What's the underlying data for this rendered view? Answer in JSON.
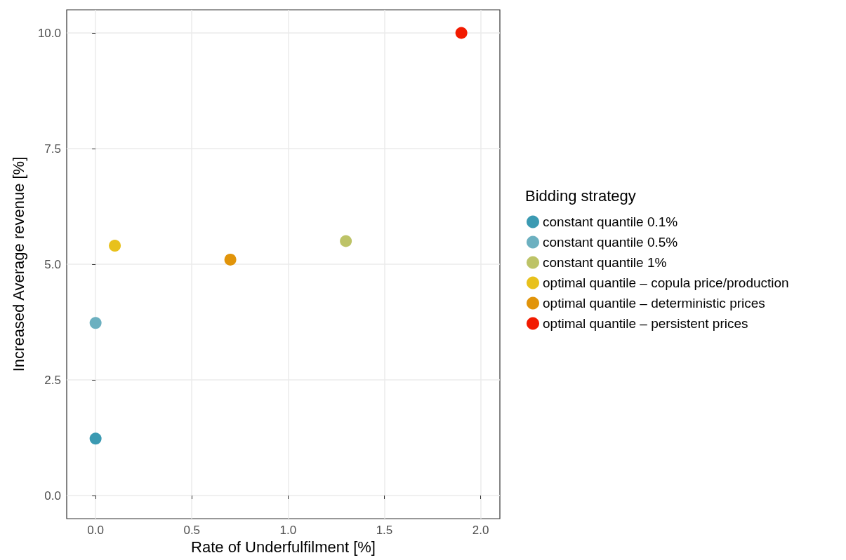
{
  "chart_data": {
    "type": "scatter",
    "xlabel": "Rate of Underfulfilment [%]",
    "ylabel": "Increased Average revenue [%]",
    "legend_title": "Bidding strategy",
    "series": [
      {
        "name": "constant quantile 0.1%",
        "color": "#3b9ab2",
        "x": [
          0
        ],
        "values": [
          1.23
        ]
      },
      {
        "name": "constant quantile 0.5%",
        "color": "#6cb0c0",
        "x": [
          0
        ],
        "values": [
          3.73
        ]
      },
      {
        "name": "constant quantile 1%",
        "color": "#bdc367",
        "x": [
          1.3
        ],
        "values": [
          5.5
        ]
      },
      {
        "name": "optimal quantile – copula price/production",
        "color": "#e8c11c",
        "x": [
          0.1
        ],
        "values": [
          5.4
        ]
      },
      {
        "name": "optimal quantile – deterministic prices",
        "color": "#e1940a",
        "x": [
          0.7
        ],
        "values": [
          5.1
        ]
      },
      {
        "name": "optimal quantile – persistent prices",
        "color": "#f21a00",
        "x": [
          1.9
        ],
        "values": [
          10
        ]
      }
    ],
    "xlim": [
      -0.15,
      2.1
    ],
    "xticks": [
      {
        "value": 0,
        "label": "0.0"
      },
      {
        "value": 0.5,
        "label": "0.5"
      },
      {
        "value": 1,
        "label": "1.0"
      },
      {
        "value": 1.5,
        "label": "1.5"
      },
      {
        "value": 2,
        "label": "2.0"
      }
    ],
    "ylim": [
      -0.5,
      10.5
    ],
    "yticks": [
      {
        "value": 0,
        "label": "0.0"
      },
      {
        "value": 2.5,
        "label": "2.5"
      },
      {
        "value": 5,
        "label": "5.0"
      },
      {
        "value": 7.5,
        "label": "7.5"
      },
      {
        "value": 10,
        "label": "10.0"
      }
    ],
    "grid": true,
    "legend": "right",
    "marker": "circle"
  }
}
